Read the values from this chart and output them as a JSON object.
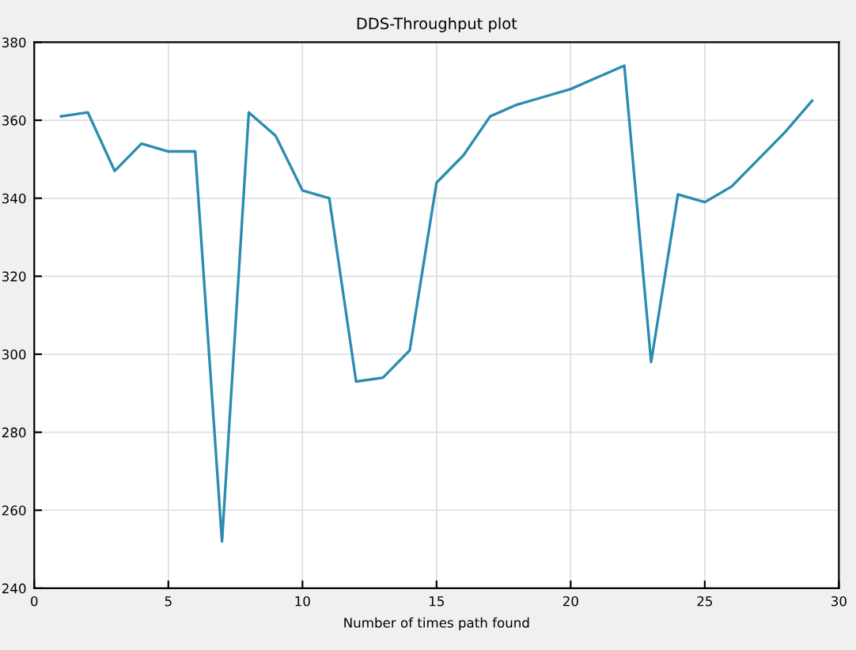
{
  "chart_data": {
    "type": "line",
    "title": "DDS-Throughput plot",
    "xlabel": "Number of times path found",
    "x": [
      1,
      2,
      3,
      4,
      5,
      6,
      7,
      8,
      9,
      10,
      11,
      12,
      13,
      14,
      15,
      16,
      17,
      18,
      19,
      20,
      21,
      22,
      23,
      24,
      25,
      26,
      27,
      28,
      29
    ],
    "series": [
      {
        "color": "#2b8cb0",
        "values": [
          361,
          362,
          347,
          354,
          352,
          352,
          252,
          362,
          356,
          342,
          340,
          293,
          294,
          301,
          344,
          351,
          361,
          364,
          366,
          368,
          371,
          374,
          298,
          341,
          339,
          343,
          350,
          357,
          365
        ]
      }
    ],
    "xlim": [
      0,
      30
    ],
    "xticks": [
      0,
      5,
      10,
      15,
      20,
      25,
      30
    ],
    "ylim": [
      240,
      380
    ],
    "yticks": [
      240,
      260,
      280,
      300,
      320,
      340,
      360,
      380
    ],
    "grid": true,
    "marker": "none",
    "line_style": "solid"
  }
}
